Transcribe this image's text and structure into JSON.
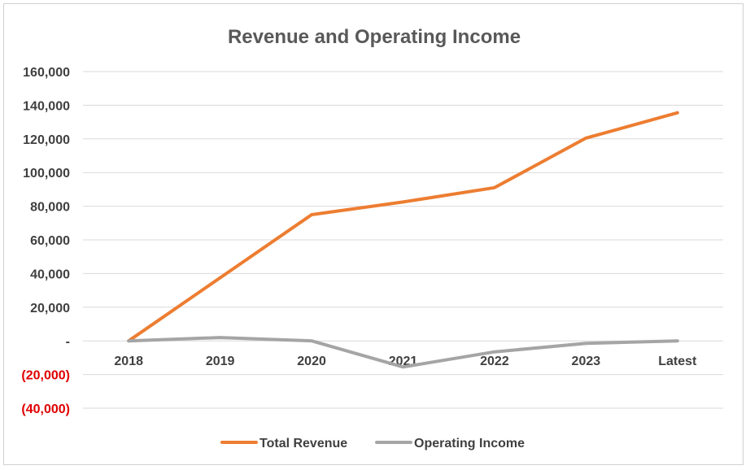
{
  "chart_data": {
    "type": "line",
    "title": "Revenue and Operating Income",
    "categories": [
      "2018",
      "2019",
      "2020",
      "2021",
      "2022",
      "2023",
      "Latest"
    ],
    "series": [
      {
        "name": "Total Revenue",
        "color": "#ed7d31",
        "values": [
          0,
          37500,
          75000,
          82500,
          91000,
          120500,
          135500
        ]
      },
      {
        "name": "Operating Income",
        "color": "#a5a5a5",
        "values": [
          0,
          2000,
          0,
          -15500,
          -6500,
          -1500,
          0
        ]
      }
    ],
    "ylim": [
      -40000,
      160000
    ],
    "y_ticks": [
      {
        "value": 160000,
        "label": "160,000",
        "color": "#404040"
      },
      {
        "value": 140000,
        "label": "140,000",
        "color": "#404040"
      },
      {
        "value": 120000,
        "label": "120,000",
        "color": "#404040"
      },
      {
        "value": 100000,
        "label": "100,000",
        "color": "#404040"
      },
      {
        "value": 80000,
        "label": "80,000",
        "color": "#404040"
      },
      {
        "value": 60000,
        "label": "60,000",
        "color": "#404040"
      },
      {
        "value": 40000,
        "label": "40,000",
        "color": "#404040"
      },
      {
        "value": 20000,
        "label": "20,000",
        "color": "#404040"
      },
      {
        "value": 0,
        "label": "-",
        "color": "#404040"
      },
      {
        "value": -20000,
        "label": "(20,000)",
        "color": "#e00000"
      },
      {
        "value": -40000,
        "label": "(40,000)",
        "color": "#e00000"
      }
    ],
    "grid": true,
    "legend": "bottom-center",
    "xlabel": "",
    "ylabel": ""
  }
}
